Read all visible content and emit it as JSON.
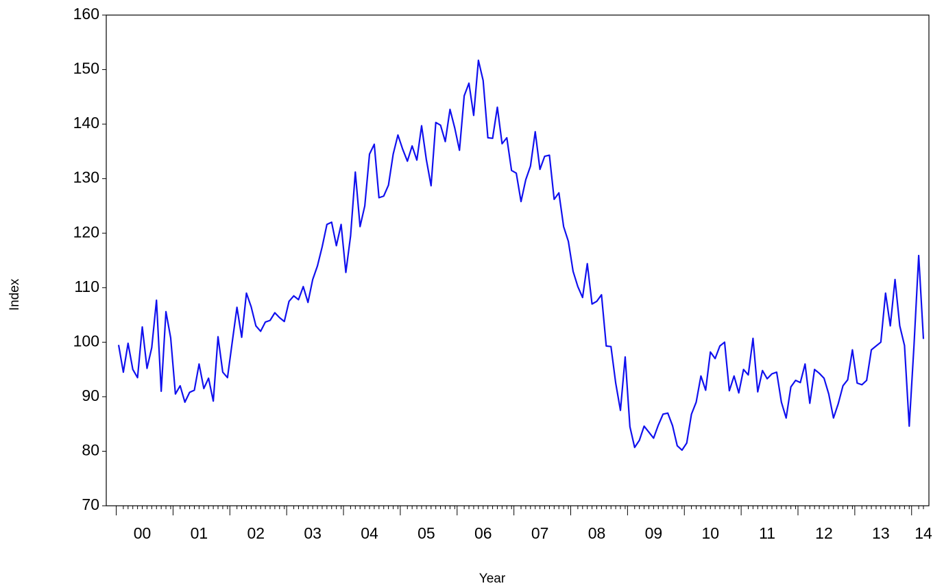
{
  "chart_data": {
    "type": "line",
    "x_label": "Year",
    "y_label": "Index",
    "categories": [
      null,
      null,
      null,
      null,
      null,
      "00",
      null,
      null,
      null,
      null,
      null,
      null,
      null,
      null,
      null,
      null,
      null,
      "01",
      null,
      null,
      null,
      null,
      null,
      null,
      null,
      null,
      null,
      null,
      null,
      "02",
      null,
      null,
      null,
      null,
      null,
      null,
      null,
      null,
      null,
      null,
      null,
      "03",
      null,
      null,
      null,
      null,
      null,
      null,
      null,
      null,
      null,
      null,
      null,
      "04",
      null,
      null,
      null,
      null,
      null,
      null,
      null,
      null,
      null,
      null,
      null,
      "05",
      null,
      null,
      null,
      null,
      null,
      null,
      null,
      null,
      null,
      null,
      null,
      "06",
      null,
      null,
      null,
      null,
      null,
      null,
      null,
      null,
      null,
      null,
      null,
      "07",
      null,
      null,
      null,
      null,
      null,
      null,
      null,
      null,
      null,
      null,
      null,
      "08",
      null,
      null,
      null,
      null,
      null,
      null,
      null,
      null,
      null,
      null,
      null,
      "09",
      null,
      null,
      null,
      null,
      null,
      null,
      null,
      null,
      null,
      null,
      null,
      "10",
      null,
      null,
      null,
      null,
      null,
      null,
      null,
      null,
      null,
      null,
      null,
      "11",
      null,
      null,
      null,
      null,
      null,
      null,
      null,
      null,
      null,
      null,
      null,
      "12",
      null,
      null,
      null,
      null,
      null,
      null,
      null,
      null,
      null,
      null,
      null,
      "13",
      null,
      null,
      null,
      null,
      null,
      null,
      null,
      null,
      "14"
    ],
    "series": [
      {
        "name": "Index",
        "color": "#1010ee",
        "values": [
          99.5,
          94.5,
          99.8,
          95,
          93.5,
          102.8,
          95.2,
          99,
          107.7,
          91,
          105.6,
          100.8,
          90.5,
          92,
          89,
          90.8,
          91.2,
          96,
          91.5,
          93.4,
          89.2,
          101,
          94.5,
          93.5,
          100,
          106.4,
          100.9,
          109,
          106.5,
          103,
          102,
          103.7,
          104,
          105.4,
          104.5,
          103.8,
          107.5,
          108.5,
          107.8,
          110.2,
          107.3,
          111.5,
          114,
          117.5,
          121.6,
          122,
          117.7,
          121.6,
          112.8,
          119.5,
          131.2,
          121.2,
          125,
          134.5,
          136.3,
          126.5,
          126.8,
          128.8,
          134.5,
          138,
          135.4,
          133.2,
          136,
          133.4,
          139.7,
          133.5,
          128.7,
          140.3,
          139.8,
          136.8,
          142.7,
          139.3,
          135.2,
          145.2,
          147.5,
          141.6,
          151.7,
          148,
          137.5,
          137.4,
          143.1,
          136.4,
          137.5,
          131.5,
          131,
          125.8,
          129.8,
          132.3,
          138.6,
          131.7,
          134.1,
          134.3,
          126.2,
          127.4,
          121.2,
          118.5,
          113,
          110.2,
          108.2,
          114.4,
          107,
          107.5,
          108.7,
          99.3,
          99.2,
          92.5,
          87.5,
          97.3,
          84.5,
          80.7,
          82,
          84.6,
          83.5,
          82.4,
          84.8,
          86.8,
          87,
          84.7,
          81,
          80.2,
          81.5,
          86.8,
          89,
          93.8,
          91.2,
          98.2,
          97,
          99.3,
          100,
          91.1,
          93.8,
          90.7,
          95,
          94,
          100.7,
          90.9,
          94.8,
          93.3,
          94.2,
          94.5,
          89,
          86.1,
          91.8,
          93,
          92.6,
          96,
          88.8,
          95,
          94.3,
          93.4,
          90.5,
          86.1,
          88.7,
          92,
          93.1,
          98.6,
          92.5,
          92.2,
          93,
          98.6,
          99.3,
          100,
          109,
          103,
          111.5,
          103,
          99.4,
          84.6,
          99.3,
          115.9,
          100.6
        ]
      }
    ],
    "ylim": [
      70,
      160
    ],
    "yticks": [
      70,
      80,
      90,
      100,
      110,
      120,
      130,
      140,
      150,
      160
    ]
  }
}
